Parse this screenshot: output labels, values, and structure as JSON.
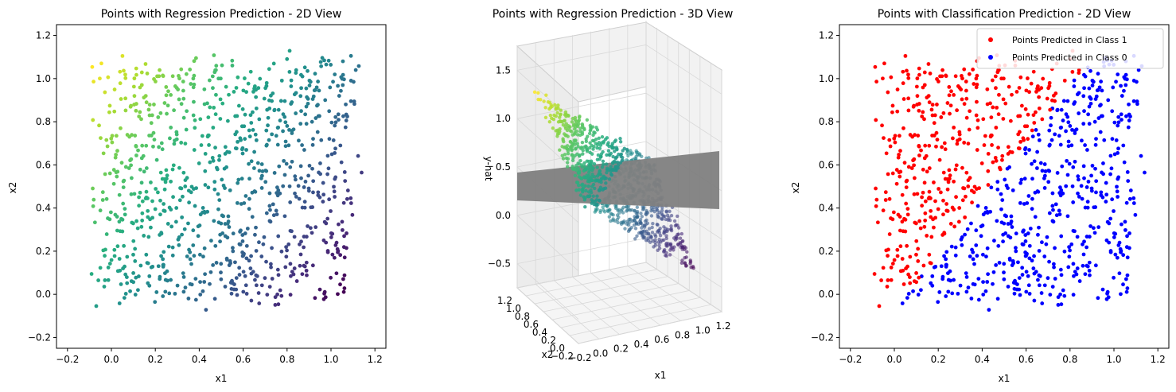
{
  "chart_data": [
    {
      "type": "scatter",
      "title": "Points with Regression Prediction - 2D View",
      "xlabel": "x1",
      "ylabel": "x2",
      "xlim": [
        -0.25,
        1.25
      ],
      "ylim": [
        -0.25,
        1.25
      ],
      "xticks": [
        -0.2,
        0.0,
        0.2,
        0.4,
        0.6,
        0.8,
        1.0,
        1.2
      ],
      "yticks": [
        -0.2,
        0.0,
        0.2,
        0.4,
        0.6,
        0.8,
        1.0,
        1.2
      ],
      "tick_labels_x": [
        "−0.2",
        "0.0",
        "0.2",
        "0.4",
        "0.6",
        "0.8",
        "1.0",
        "1.2"
      ],
      "tick_labels_y": [
        "−0.2",
        "0.0",
        "0.2",
        "0.4",
        "0.6",
        "0.8",
        "1.0",
        "1.2"
      ],
      "colormap": "viridis",
      "color_encodes": "predicted y-hat (approx. 0.5 + 0.5*x2 - 0.8*x1 + 0.2)",
      "points_description": "about 1000 points roughly uniform in x1 in [-0.2, 1.25], x2 in [-0.2, 1.2], denser in [0, 1] x [0, 1]"
    },
    {
      "type": "scatter3d",
      "title": "Points with Regression Prediction - 3D View",
      "xlabel": "x1",
      "ylabel": "x2",
      "zlabel": "y-hat",
      "xticks": [
        "−0.2",
        "0.0",
        "0.2",
        "0.4",
        "0.6",
        "0.8",
        "1.0",
        "1.2"
      ],
      "yticks": [
        "−0.2",
        "0.0",
        "0.2",
        "0.4",
        "0.6",
        "0.8",
        "1.0",
        "1.2"
      ],
      "zticks": [
        "−0.5",
        "0.0",
        "0.5",
        "1.0",
        "1.5"
      ],
      "zlim": [
        -0.75,
        1.75
      ],
      "plane_level": 0.5,
      "plane_color": "#808080",
      "colormap": "viridis"
    },
    {
      "type": "scatter",
      "title": "Points with Classification Prediction - 2D View",
      "xlabel": "x1",
      "ylabel": "x2",
      "xlim": [
        -0.25,
        1.25
      ],
      "ylim": [
        -0.25,
        1.25
      ],
      "tick_labels_x": [
        "−0.2",
        "0.0",
        "0.2",
        "0.4",
        "0.6",
        "0.8",
        "1.0",
        "1.2"
      ],
      "tick_labels_y": [
        "−0.2",
        "0.0",
        "0.2",
        "0.4",
        "0.6",
        "0.8",
        "1.0",
        "1.2"
      ],
      "series": [
        {
          "name": "Points Predicted in Class 1",
          "color": "#ff0000"
        },
        {
          "name": "Points Predicted in Class 0",
          "color": "#0000ff"
        }
      ],
      "legend_position": "upper right",
      "decision_rule": "class 1 where predicted y-hat > 0.5"
    }
  ]
}
